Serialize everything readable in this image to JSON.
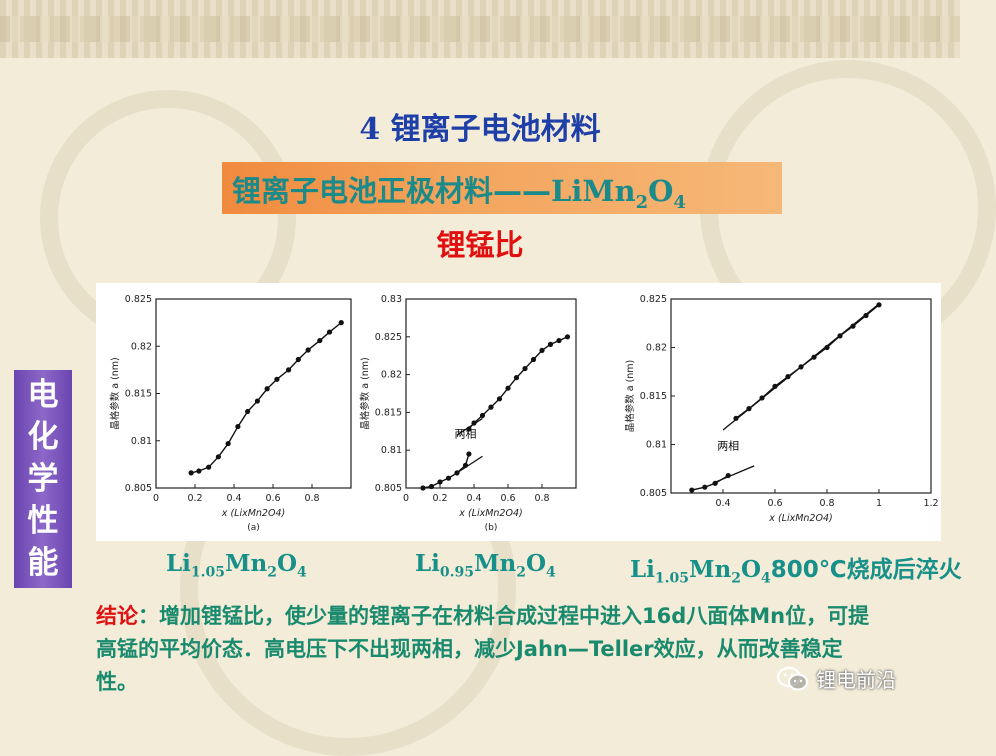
{
  "slide": {
    "title": "4 锂离子电池材料",
    "subtitle_cn": "锂离子电池正极材料——",
    "subtitle_formula": {
      "prefix": "LiMn",
      "sub1": "2",
      "mid": "O",
      "sub2": "4"
    },
    "topic": "锂锰比",
    "side_label": [
      "电",
      "化",
      "学",
      "性",
      "能"
    ]
  },
  "captions": [
    {
      "prefix": "Li",
      "sub1": "1.05",
      "mid": "Mn",
      "sub2": "2",
      "tail": "O",
      "sub3": "4",
      "suffix": ""
    },
    {
      "prefix": "Li",
      "sub1": "0.95",
      "mid": "Mn",
      "sub2": "2",
      "tail": "O",
      "sub3": "4",
      "suffix": ""
    },
    {
      "prefix": "Li",
      "sub1": "1.05",
      "mid": "Mn",
      "sub2": "2",
      "tail": "O",
      "sub3": "4",
      "suffix": "800℃烧成后淬火"
    }
  ],
  "conclusion": {
    "lead": "结论",
    "text": "：增加锂锰比，使少量的锂离子在材料合成过程中进入16d八面体Mn位，可提高锰的平均价态．高电压下不出现两相，减少Jahn—Teller效应，从而改善稳定性。"
  },
  "watermark": {
    "text": "锂电前沿",
    "icon": "wechat-icon"
  },
  "chart_data": [
    {
      "type": "line",
      "xlabel": "x (LixMn2O4)",
      "ylabel": "晶格参数 a (nm)",
      "panel_label": "(a)",
      "xlim": [
        0,
        1.0
      ],
      "ylim": [
        0.805,
        0.825
      ],
      "xticks": [
        "0",
        "0.2",
        "0.4",
        "0.6",
        "0.8"
      ],
      "xtick_values": [
        0,
        0.2,
        0.4,
        0.6,
        0.8
      ],
      "yticks": [
        "0.805",
        "0.81",
        "0.815",
        "0.82",
        "0.825"
      ],
      "ytick_values": [
        0.805,
        0.81,
        0.815,
        0.82,
        0.825
      ],
      "annotations": [],
      "series": [
        {
          "x": [
            0.18,
            0.22,
            0.27,
            0.32,
            0.37,
            0.42,
            0.47,
            0.52,
            0.57,
            0.62,
            0.68,
            0.73,
            0.78,
            0.84,
            0.89,
            0.95
          ],
          "y": [
            0.8066,
            0.8068,
            0.8072,
            0.8083,
            0.8097,
            0.8115,
            0.8131,
            0.8142,
            0.8155,
            0.8165,
            0.8175,
            0.8186,
            0.8196,
            0.8206,
            0.8215,
            0.8225
          ]
        }
      ]
    },
    {
      "type": "line",
      "xlabel": "x (LixMn2O4)",
      "ylabel": "晶格参数 a (nm)",
      "panel_label": "(b)",
      "xlim": [
        0,
        1.0
      ],
      "ylim": [
        0.805,
        0.83
      ],
      "xticks": [
        "0",
        "0.2",
        "0.4",
        "0.6",
        "0.8"
      ],
      "xtick_values": [
        0,
        0.2,
        0.4,
        0.6,
        0.8
      ],
      "yticks": [
        "0.805",
        "0.81",
        "0.815",
        "0.82",
        "0.825",
        "0.83"
      ],
      "ytick_values": [
        0.805,
        0.81,
        0.815,
        0.82,
        0.825,
        0.83
      ],
      "annotations": [
        {
          "text": "两相",
          "x": 0.35,
          "y": 0.8117
        }
      ],
      "series": [
        {
          "x": [
            0.1,
            0.15,
            0.2,
            0.25,
            0.3,
            0.35,
            0.37
          ],
          "y": [
            0.805,
            0.8052,
            0.8058,
            0.8063,
            0.807,
            0.808,
            0.8095
          ]
        },
        {
          "x": [
            0.37,
            0.4,
            0.45,
            0.5,
            0.55,
            0.6,
            0.65,
            0.7,
            0.75,
            0.8,
            0.85,
            0.9,
            0.95
          ],
          "y": [
            0.8128,
            0.8136,
            0.8146,
            0.8157,
            0.8168,
            0.8182,
            0.8196,
            0.8208,
            0.822,
            0.8232,
            0.824,
            0.8245,
            0.825
          ]
        }
      ],
      "guides": [
        {
          "x": [
            0.3,
            0.45
          ],
          "y": [
            0.807,
            0.8092
          ]
        },
        {
          "x": [
            0.3,
            0.45
          ],
          "y": [
            0.812,
            0.8142
          ]
        }
      ]
    },
    {
      "type": "line",
      "xlabel": "x (LixMn2O4)",
      "ylabel": "晶格参数 a (nm)",
      "panel_label": "",
      "xlim": [
        0.2,
        1.2
      ],
      "ylim": [
        0.805,
        0.825
      ],
      "xticks": [
        "0.4",
        "0.6",
        "0.8",
        "1",
        "1.2"
      ],
      "xtick_values": [
        0.4,
        0.6,
        0.8,
        1.0,
        1.2
      ],
      "yticks": [
        "0.805",
        "0.81",
        "0.815",
        "0.82",
        "0.825"
      ],
      "ytick_values": [
        0.805,
        0.81,
        0.815,
        0.82,
        0.825
      ],
      "annotations": [
        {
          "text": "两相",
          "x": 0.42,
          "y": 0.8095
        }
      ],
      "series": [
        {
          "x": [
            0.28,
            0.33,
            0.37,
            0.42
          ],
          "y": [
            0.8053,
            0.8056,
            0.806,
            0.8068
          ]
        },
        {
          "x": [
            0.45,
            0.5,
            0.55,
            0.6,
            0.65,
            0.7,
            0.75,
            0.8,
            0.85,
            0.9,
            0.95,
            1.0
          ],
          "y": [
            0.8127,
            0.8137,
            0.8148,
            0.816,
            0.817,
            0.818,
            0.819,
            0.82,
            0.8212,
            0.8222,
            0.8233,
            0.8244
          ]
        }
      ],
      "guides": [
        {
          "x": [
            0.36,
            0.52
          ],
          "y": [
            0.806,
            0.8078
          ]
        },
        {
          "x": [
            0.4,
            1.0
          ],
          "y": [
            0.8115,
            0.8245
          ]
        }
      ]
    }
  ]
}
